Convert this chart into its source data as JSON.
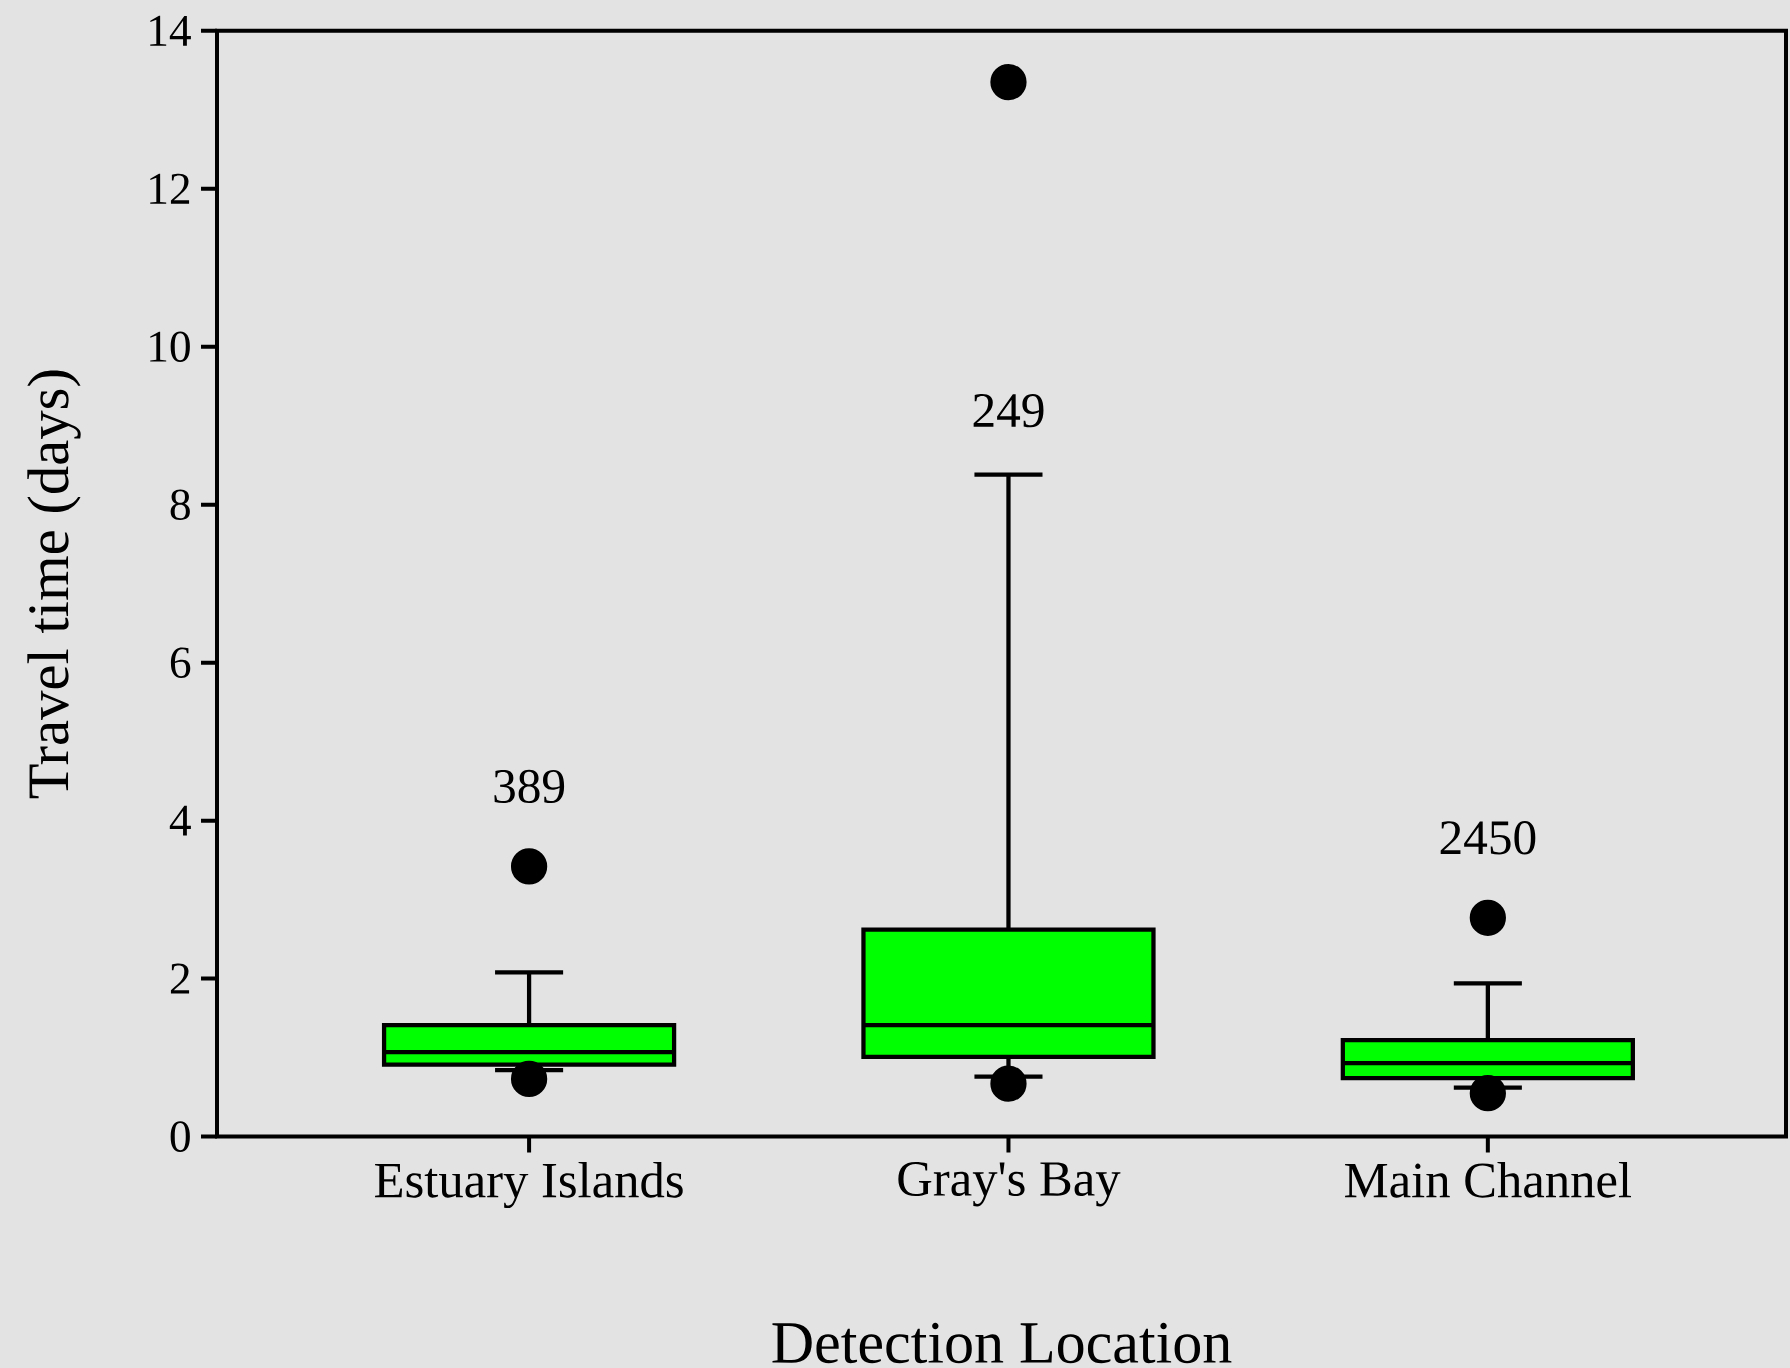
{
  "chart_data": {
    "type": "box",
    "categories": [
      "Estuary Islands",
      "Gray's Bay",
      "Main Channel"
    ],
    "boxes": [
      {
        "low": 0.84,
        "q1": 0.91,
        "median": 1.07,
        "q3": 1.41,
        "high": 2.08,
        "outliers": [
          3.42,
          0.73
        ]
      },
      {
        "low": 0.76,
        "q1": 1.01,
        "median": 1.41,
        "q3": 2.62,
        "high": 8.38,
        "outliers": [
          13.35,
          0.67
        ]
      },
      {
        "low": 0.62,
        "q1": 0.74,
        "median": 0.93,
        "q3": 1.22,
        "high": 1.94,
        "outliers": [
          2.77,
          0.55
        ]
      }
    ],
    "color": "#00ff00",
    "marker": "circle",
    "xlabel": "Detection Location",
    "ylabel": "Travel time (days)",
    "ylim": [
      0,
      14
    ],
    "yticks": [
      0,
      2,
      4,
      6,
      8,
      10,
      12,
      14
    ],
    "annotations": [
      "389",
      "249",
      "2450"
    ]
  }
}
